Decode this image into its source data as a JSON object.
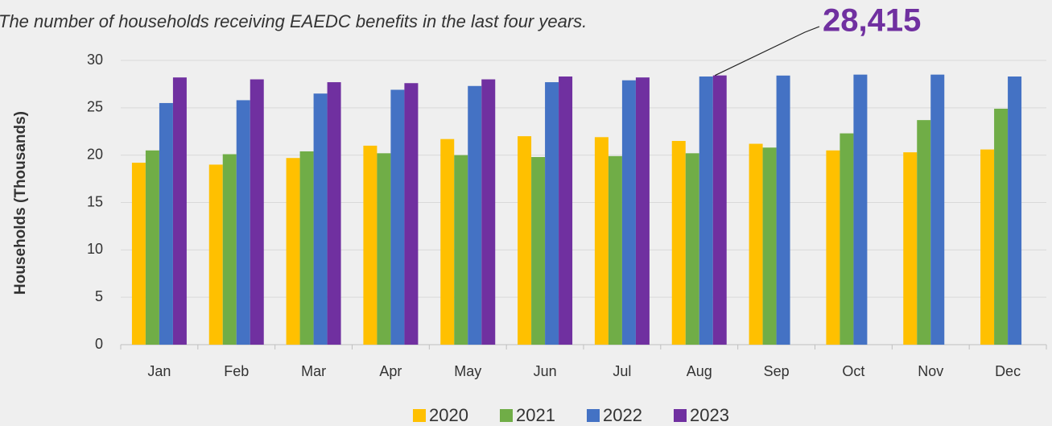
{
  "chart_data": {
    "type": "bar",
    "title": "The number of households receiving EAEDC benefits in the last four years.",
    "y_label": "Households (Thousands)",
    "categories": [
      "Jan",
      "Feb",
      "Mar",
      "Apr",
      "May",
      "Jun",
      "Jul",
      "Aug",
      "Sep",
      "Oct",
      "Nov",
      "Dec"
    ],
    "series": [
      {
        "name": "2020",
        "color": "#ffc000",
        "values": [
          19.2,
          19.0,
          19.7,
          21.0,
          21.7,
          22.0,
          21.9,
          21.5,
          21.2,
          20.5,
          20.3,
          20.6
        ]
      },
      {
        "name": "2021",
        "color": "#70ad47",
        "values": [
          20.5,
          20.1,
          20.4,
          20.2,
          20.0,
          19.8,
          19.9,
          20.2,
          20.8,
          22.3,
          23.7,
          24.9
        ]
      },
      {
        "name": "2022",
        "color": "#4472c4",
        "values": [
          25.5,
          25.8,
          26.5,
          26.9,
          27.3,
          27.7,
          27.9,
          28.3,
          28.4,
          28.5,
          28.5,
          28.3
        ]
      },
      {
        "name": "2023",
        "color": "#7030a0",
        "values": [
          28.2,
          28.0,
          27.7,
          27.6,
          28.0,
          28.3,
          28.2,
          28.415,
          null,
          null,
          null,
          null
        ],
        "value_labels": [
          null,
          null,
          null,
          null,
          null,
          null,
          null,
          "28,415",
          null,
          null,
          null,
          null
        ]
      }
    ],
    "ylim": [
      0,
      30
    ],
    "yticks": [
      0,
      5,
      10,
      15,
      20,
      25,
      30
    ],
    "grid": true,
    "legend": "bottom"
  }
}
